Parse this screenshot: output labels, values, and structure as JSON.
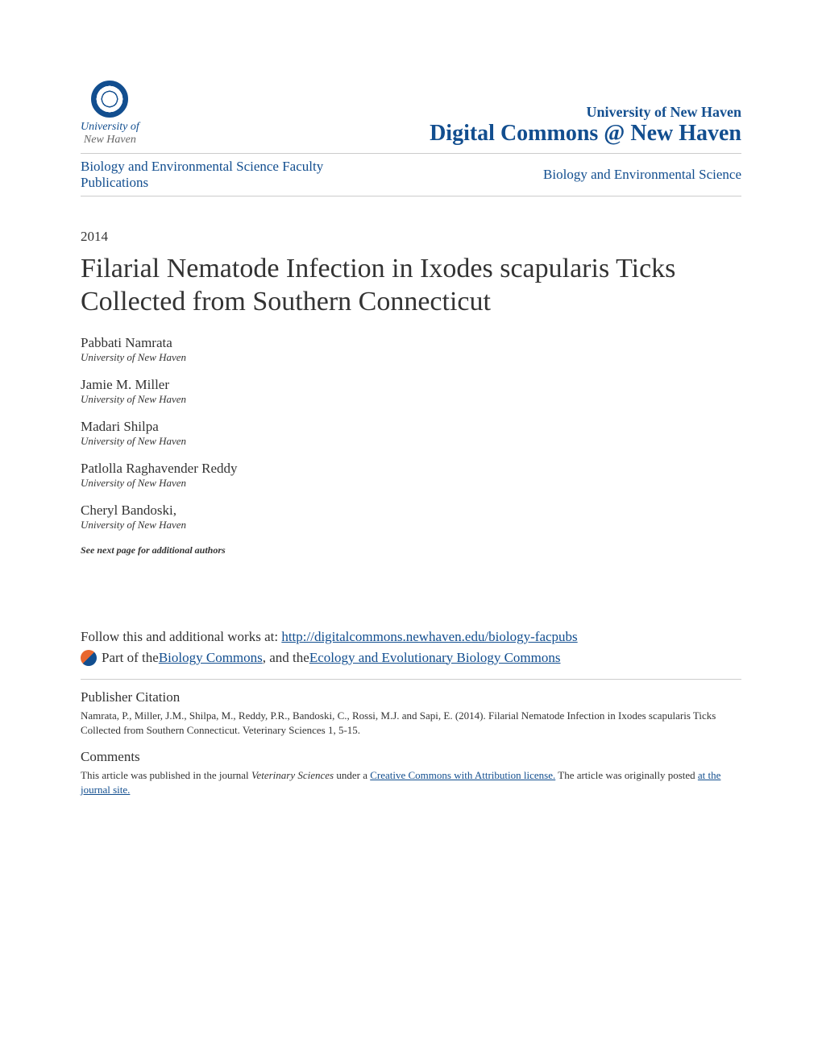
{
  "header": {
    "logo_line1": "University of",
    "logo_line2": "New Haven",
    "institution_name": "University of New Haven",
    "repository_name": "Digital Commons @ New Haven"
  },
  "breadcrumb": {
    "left": "Biology and Environmental Science Faculty Publications",
    "right": "Biology and Environmental Science"
  },
  "year": "2014",
  "title": "Filarial Nematode Infection in Ixodes scapularis Ticks Collected from Southern Connecticut",
  "authors": [
    {
      "name": "Pabbati Namrata",
      "affiliation": "University of New Haven"
    },
    {
      "name": "Jamie M. Miller",
      "affiliation": "University of New Haven"
    },
    {
      "name": "Madari Shilpa",
      "affiliation": "University of New Haven"
    },
    {
      "name": "Patlolla Raghavender Reddy",
      "affiliation": "University of New Haven"
    },
    {
      "name": "Cheryl Bandoski,",
      "affiliation": "University of New Haven"
    }
  ],
  "more_authors_note": "See next page for additional authors",
  "follow": {
    "prefix": "Follow this and additional works at: ",
    "url": "http://digitalcommons.newhaven.edu/biology-facpubs"
  },
  "network": {
    "prefix": "Part of the ",
    "link1": "Biology Commons",
    "middle": ", and the ",
    "link2": "Ecology and Evolutionary Biology Commons"
  },
  "citation": {
    "heading": "Publisher Citation",
    "text": "Namrata, P., Miller, J.M., Shilpa, M., Reddy, P.R., Bandoski, C., Rossi, M.J. and Sapi, E. (2014). Filarial Nematode Infection in Ixodes scapularis Ticks Collected from Southern Connecticut. Veterinary Sciences 1, 5-15."
  },
  "comments": {
    "heading": "Comments",
    "text_before": "This article was published in the journal ",
    "journal_italic": "Veterinary Sciences",
    "text_mid": " under a ",
    "license_link": "Creative Commons with Attribution license.",
    "text_after": " The article was originally posted ",
    "posted_link": "at the journal site."
  },
  "colors": {
    "primary": "#124e8f",
    "text": "#333333",
    "border": "#cccccc",
    "background": "#ffffff",
    "icon_orange": "#e8672e"
  }
}
